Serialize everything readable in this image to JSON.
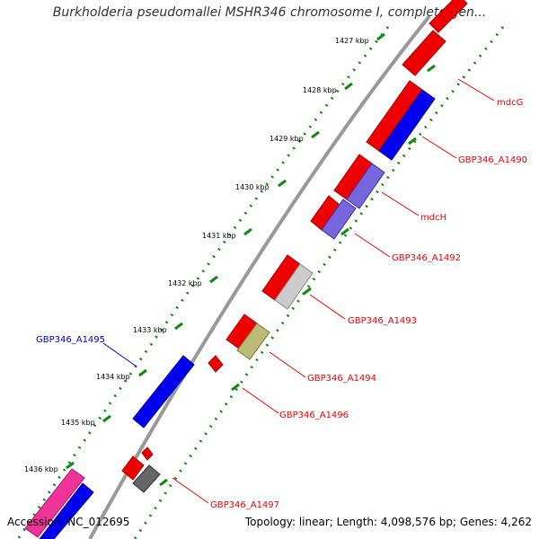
{
  "title": "Burkholderia pseudomallei MSHR346 chromosome I, complete gen...",
  "footer": {
    "accession": "Accession: NC_012695",
    "summary": "Topology: linear; Length: 4,098,576 bp; Genes: 4,262"
  },
  "ticks": [
    "1427 kbp",
    "1428 kbp",
    "1429 kbp",
    "1430 kbp",
    "1431 kbp",
    "1432 kbp",
    "1433 kbp",
    "1434 kbp",
    "1435 kbp",
    "1436 kbp"
  ],
  "gene_labels": [
    {
      "text": "mdcG",
      "color": "#ee0000"
    },
    {
      "text": "GBP346_A1490",
      "color": "#ee0000"
    },
    {
      "text": "mdcH",
      "color": "#ee0000"
    },
    {
      "text": "GBP346_A1492",
      "color": "#ee0000"
    },
    {
      "text": "GBP346_A1493",
      "color": "#ee0000"
    },
    {
      "text": "GBP346_A1494",
      "color": "#ee0000"
    },
    {
      "text": "GBP346_A1496",
      "color": "#ee0000"
    },
    {
      "text": "GBP346_A1497",
      "color": "#ee0000"
    },
    {
      "text": "GBP346_A1495",
      "color": "#0000cc"
    }
  ],
  "colors": {
    "red": "#ee0000",
    "blue": "#0000ee",
    "lightblue": "#7766dd",
    "gray": "#cccccc",
    "darkgray": "#666666",
    "olive": "#bbbb77",
    "pink": "#ee3399",
    "dotted": "#118811",
    "backbone": "#999999"
  }
}
